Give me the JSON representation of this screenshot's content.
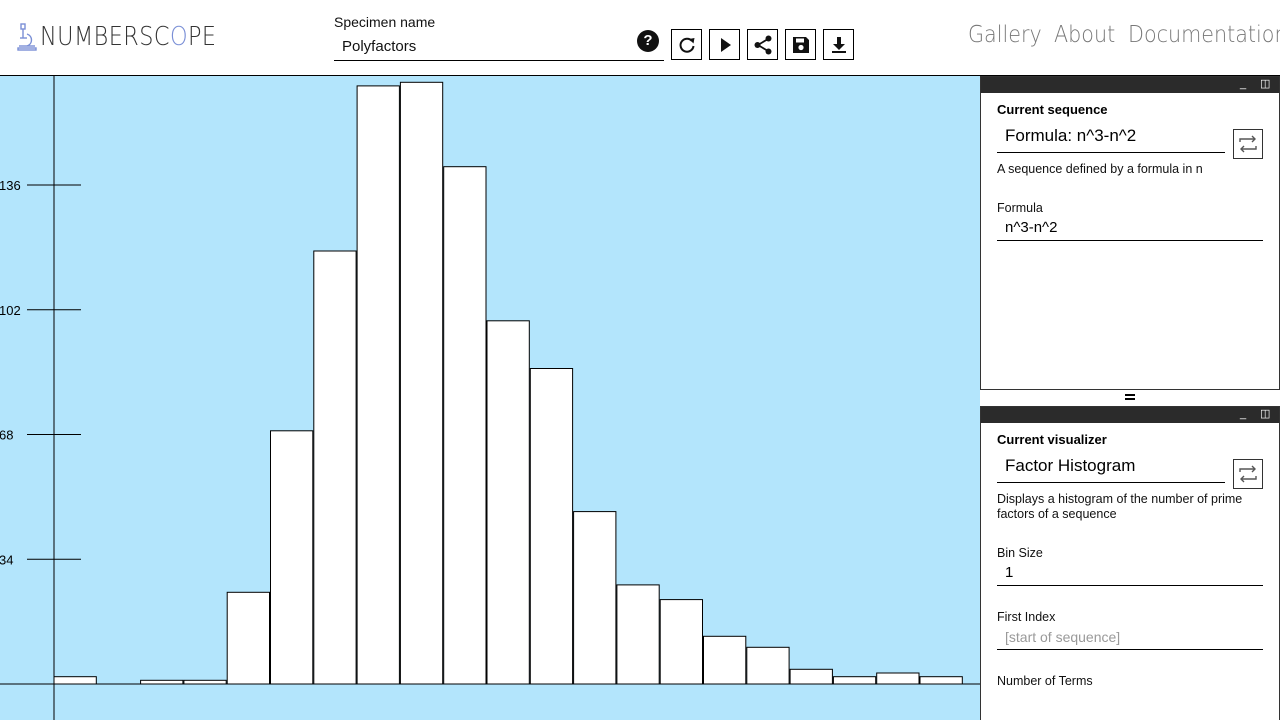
{
  "header": {
    "logo_text_a": "NUMBERSC",
    "logo_text_b": "O",
    "logo_text_c": "PE",
    "specimen_label": "Specimen name",
    "specimen_value": "Polyfactors",
    "help_glyph": "?",
    "tools": [
      "refresh-icon",
      "play-icon",
      "share-icon",
      "save-icon",
      "download-icon"
    ],
    "nav": [
      "Gallery",
      "About",
      "Documentation"
    ]
  },
  "sequence_panel": {
    "heading": "Current sequence",
    "selected": "Formula: n^3-n^2",
    "description": "A sequence defined by a formula in n",
    "fields": [
      {
        "label": "Formula",
        "value": "n^3-n^2"
      }
    ]
  },
  "visualizer_panel": {
    "heading": "Current visualizer",
    "selected": "Factor Histogram",
    "description": "Displays a histogram of the number of prime factors of a sequence",
    "fields": [
      {
        "label": "Bin Size",
        "value": "1"
      },
      {
        "label": "First Index",
        "placeholder": "[start of sequence]"
      },
      {
        "label": "Number of Terms"
      }
    ]
  },
  "colors": {
    "chart_background": "#b3e5fc",
    "bar_fill": "#ffffff",
    "accent": "#7a8fd6"
  },
  "chart_data": {
    "type": "bar",
    "title": "",
    "xlabel": "",
    "ylabel": "",
    "y_ticks": [
      34,
      68,
      102,
      136
    ],
    "ylim": [
      0,
      172
    ],
    "values": [
      2,
      0,
      1,
      1,
      25,
      69,
      118,
      163,
      164,
      141,
      99,
      86,
      47,
      27,
      23,
      13,
      10,
      4,
      2,
      3,
      2
    ],
    "grid": false,
    "legend": "none"
  }
}
